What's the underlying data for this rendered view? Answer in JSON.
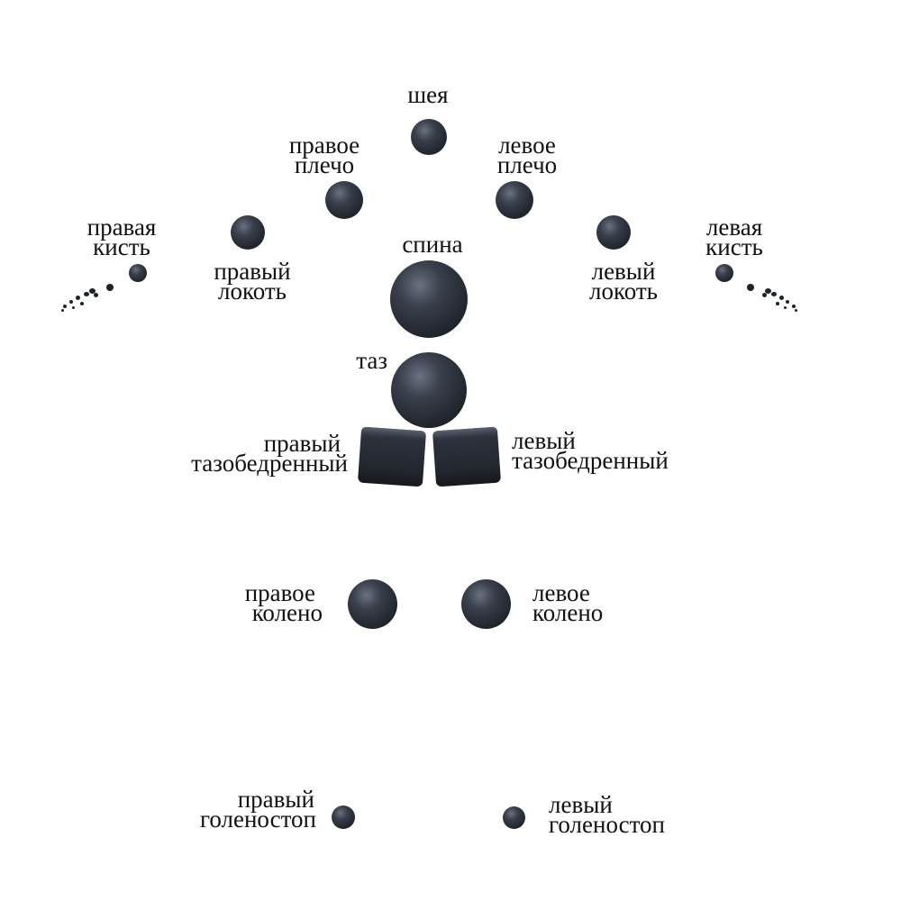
{
  "labels": {
    "neck": [
      "шея"
    ],
    "right_shoulder": [
      "правое",
      "плечо"
    ],
    "left_shoulder": [
      "левое",
      "плечо"
    ],
    "right_wrist": [
      "правая",
      "кисть"
    ],
    "left_wrist": [
      "левая",
      "кисть"
    ],
    "spine": [
      "спина"
    ],
    "right_elbow": [
      "правый",
      "локоть"
    ],
    "left_elbow": [
      "левый",
      "локоть"
    ],
    "pelvis": [
      "таз"
    ],
    "right_hip": [
      "правый",
      "тазобедренный"
    ],
    "left_hip": [
      "левый",
      "тазобедренный"
    ],
    "right_knee": [
      "правое",
      "колено"
    ],
    "left_knee": [
      "левое",
      "колено"
    ],
    "right_ankle": [
      "правый",
      "голеностоп"
    ],
    "left_ankle": [
      "левый",
      "голеностоп"
    ]
  },
  "colors": {
    "joint": "#2a2f38",
    "text": "#111111",
    "background": "#ffffff"
  }
}
